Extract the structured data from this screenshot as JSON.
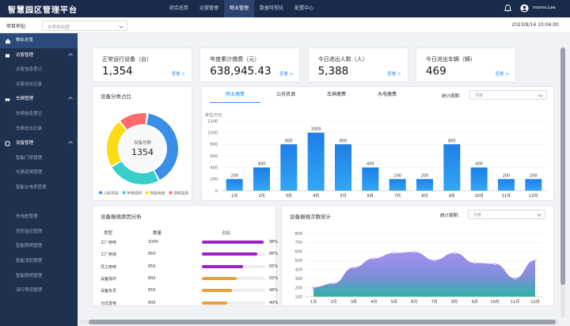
{
  "app": {
    "title": "智慧园区管理平台",
    "user": "momo.Lee"
  },
  "nav": [
    {
      "label": "综合态势"
    },
    {
      "label": "运营管理"
    },
    {
      "label": "物业管理",
      "active": true
    },
    {
      "label": "数据可视化"
    },
    {
      "label": "配置中心"
    }
  ],
  "subbar": {
    "label": "项目地址:",
    "select": "未来创业园",
    "datetime": "2023/9/14 10:04:00"
  },
  "sidebar": [
    {
      "label": "物业总览",
      "type": "sec",
      "icon": "home-icon",
      "active": true
    },
    {
      "label": "访客管理",
      "type": "sec",
      "icon": "book-icon"
    },
    {
      "label": "访客信息登记",
      "type": "sub"
    },
    {
      "label": "访客进出记录",
      "type": "sub"
    },
    {
      "label": "车辆管理",
      "type": "sec",
      "icon": "car-icon"
    },
    {
      "label": "车辆信息登记",
      "type": "sub"
    },
    {
      "label": "车辆进出记录",
      "type": "sub"
    },
    {
      "label": "设备管理",
      "type": "sec",
      "icon": "device-icon"
    },
    {
      "label": "智能门禁管理",
      "type": "sub"
    },
    {
      "label": "车辆道闸管理",
      "type": "sub"
    },
    {
      "label": "智能水电表管理",
      "type": "sub"
    },
    {
      "label": "",
      "type": "sub"
    },
    {
      "label": "充电桩管理",
      "type": "sub"
    },
    {
      "label": "安防监控管理",
      "type": "sub"
    },
    {
      "label": "智能照明管理",
      "type": "sub"
    },
    {
      "label": "智能消防管理",
      "type": "sub"
    },
    {
      "label": "智能照明管理",
      "type": "sub"
    },
    {
      "label": "该行等设管理",
      "type": "sub"
    }
  ],
  "kpis": [
    {
      "title": "正常运行设备（台）",
      "value": "1,354",
      "more": "查看 >"
    },
    {
      "title": "年度累计缴费（元）",
      "value": "638,945.43",
      "more": "查看 >"
    },
    {
      "title": "今日进出人数（人）",
      "value": "5,388",
      "more": "查看 >"
    },
    {
      "title": "今日进出车辆（辆）",
      "value": "469",
      "more": "查看 >"
    }
  ],
  "device_panel": {
    "title": "设备分类占比",
    "center_label": "设备总数",
    "center_value": "1354",
    "legend": [
      {
        "label": "人脸抓拍",
        "color": "#3a8ee6"
      },
      {
        "label": "车辆道闸",
        "color": "#36cfc9"
      },
      {
        "label": "智能电表",
        "color": "#fadb14"
      },
      {
        "label": "视频监控",
        "color": "#ff6b6b"
      }
    ]
  },
  "fee_panel": {
    "tabs": [
      "物业缴费",
      "公共资源",
      "车辆缴费",
      "水电缴费"
    ],
    "period_label": "统计周期:",
    "period_value": "月度",
    "unit": "单位/万元"
  },
  "alarm_panel": {
    "title": "设备报维原因分析",
    "col_type": "类型",
    "col_count": "数量",
    "col_ratio": "占比",
    "rows": [
      {
        "type": "工厂用电",
        "count": "1000",
        "pct": "98%",
        "fill": 0.98,
        "color": "#a020c8"
      },
      {
        "type": "工厂用液",
        "count": "950",
        "pct": "88%",
        "fill": 0.88,
        "color": "#a020c8"
      },
      {
        "type": "员工用电",
        "count": "850",
        "pct": "65%",
        "fill": 0.65,
        "color": "#a020c8"
      },
      {
        "type": "设备损坏",
        "count": "800",
        "pct": "55%",
        "fill": 0.55,
        "color": "#e8a13a"
      },
      {
        "type": "设备失灵",
        "count": "650",
        "pct": "48%",
        "fill": 0.48,
        "color": "#e8a13a"
      },
      {
        "type": "为式发电",
        "count": "600",
        "pct": "40%",
        "fill": 0.4,
        "color": "#e8a13a"
      }
    ]
  },
  "trend_panel": {
    "title": "设备报维次数统计",
    "period_label": "统计周期:",
    "period_value": "月度"
  },
  "chart_data": [
    {
      "type": "pie",
      "title": "设备分类占比",
      "categories": [
        "人脸抓拍",
        "车辆道闸",
        "智能电表",
        "视频监控"
      ],
      "values": [
        36,
        22,
        20,
        12
      ]
    },
    {
      "type": "bar",
      "title": "",
      "ylabel": "单位/万元",
      "categories": [
        "1月",
        "2月",
        "3月",
        "4月",
        "5月",
        "6月",
        "7月",
        "8月",
        "9月",
        "10月",
        "11月",
        "12月"
      ],
      "values": [
        200,
        400,
        800,
        1000,
        800,
        400,
        200,
        200,
        800,
        400,
        200,
        200
      ],
      "ylim": [
        0,
        1200
      ],
      "yticks": [
        0,
        200,
        400,
        600,
        800,
        1000,
        1200
      ]
    },
    {
      "type": "area",
      "title": "",
      "categories": [
        "1月",
        "2月",
        "3月",
        "4月",
        "5月",
        "6月",
        "7月",
        "8月",
        "9月",
        "10月",
        "11月",
        "12月"
      ],
      "values": [
        200,
        245,
        420,
        520,
        580,
        590,
        500,
        580,
        470,
        460,
        300,
        500
      ],
      "ylim": [
        100,
        800
      ],
      "yticks": [
        100,
        200,
        300,
        400,
        500,
        600,
        700,
        800
      ]
    }
  ]
}
